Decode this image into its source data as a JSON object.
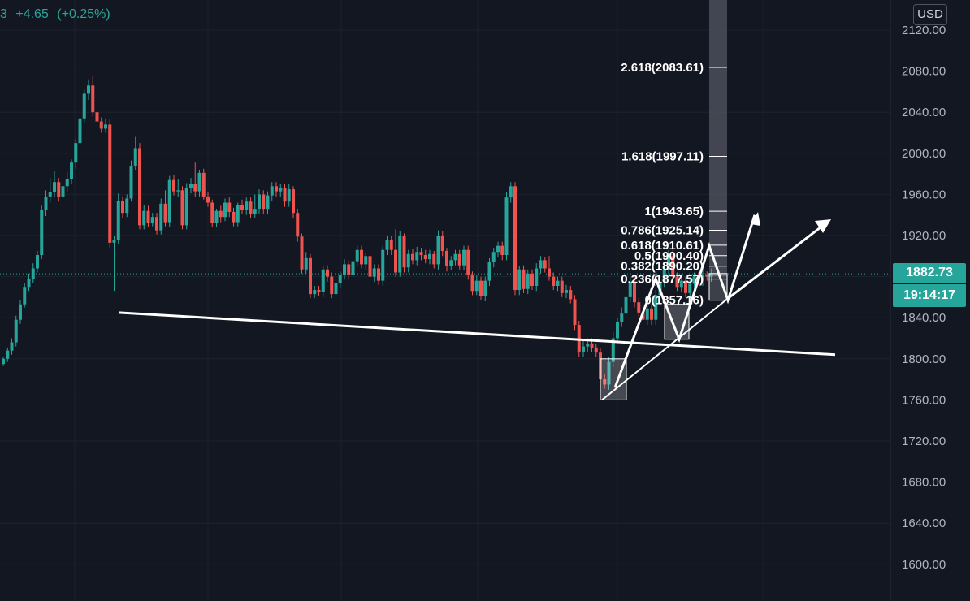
{
  "legend": {
    "symbol_tail": "3",
    "change": "+4.65",
    "change_pct": "(+0.25%)"
  },
  "currency": "USD",
  "last_price": "1882.73",
  "countdown": "19:14:17",
  "colors": {
    "background": "#131722",
    "grid": "#1e222d",
    "bull": "#26a69a",
    "bear": "#ef5350",
    "axis_text": "#b2b5be",
    "drawing": "#ffffff"
  },
  "chart_data": {
    "type": "candlestick",
    "ylim": [
      1560,
      2136
    ],
    "y_ticks": [
      "2120.00",
      "2080.00",
      "2040.00",
      "2000.00",
      "1960.00",
      "1920.00",
      "1880.00",
      "1840.00",
      "1800.00",
      "1760.00",
      "1720.00",
      "1680.00",
      "1640.00",
      "1600.00"
    ],
    "fib_levels": [
      {
        "label": "2.618(2083.61)",
        "value": 2083.61
      },
      {
        "label": "1.618(1997.11)",
        "value": 1997.11
      },
      {
        "label": "1(1943.65)",
        "value": 1943.65
      },
      {
        "label": "0.786(1925.14)",
        "value": 1925.14
      },
      {
        "label": "0.618(1910.61)",
        "value": 1910.61
      },
      {
        "label": "0.5(1900.40)",
        "value": 1900.4
      },
      {
        "label": "0.382(1890.20)",
        "value": 1890.2
      },
      {
        "label": "0.236(1877.57)",
        "value": 1877.57
      },
      {
        "label": "0(1857.16)",
        "value": 1857.16
      }
    ],
    "candles": [
      [
        1795,
        1800,
        1793,
        1802
      ],
      [
        1800,
        1808,
        1797,
        1811
      ],
      [
        1808,
        1816,
        1804,
        1820
      ],
      [
        1816,
        1838,
        1812,
        1842
      ],
      [
        1838,
        1853,
        1834,
        1857
      ],
      [
        1853,
        1870,
        1850,
        1874
      ],
      [
        1870,
        1878,
        1866,
        1883
      ],
      [
        1878,
        1888,
        1874,
        1893
      ],
      [
        1888,
        1901,
        1884,
        1905
      ],
      [
        1901,
        1945,
        1897,
        1949
      ],
      [
        1945,
        1958,
        1939,
        1964
      ],
      [
        1958,
        1962,
        1952,
        1976
      ],
      [
        1962,
        1972,
        1957,
        1983
      ],
      [
        1972,
        1958,
        1953,
        1976
      ],
      [
        1958,
        1968,
        1953,
        1972
      ],
      [
        1968,
        1975,
        1963,
        1982
      ],
      [
        1975,
        1991,
        1970,
        1994
      ],
      [
        1991,
        2010,
        1985,
        2014
      ],
      [
        2010,
        2034,
        2006,
        2039
      ],
      [
        2034,
        2058,
        2030,
        2062
      ],
      [
        2058,
        2066,
        2052,
        2072
      ],
      [
        2066,
        2040,
        2036,
        2075
      ],
      [
        2040,
        2031,
        2027,
        2045
      ],
      [
        2031,
        2024,
        2020,
        2035
      ],
      [
        2024,
        2028,
        2020,
        2034
      ],
      [
        2028,
        1913,
        1908,
        2033
      ],
      [
        1913,
        1916,
        1866,
        1920
      ],
      [
        1916,
        1954,
        1912,
        1961
      ],
      [
        1954,
        1942,
        1937,
        1958
      ],
      [
        1942,
        1956,
        1938,
        1960
      ],
      [
        1956,
        1988,
        1953,
        1993
      ],
      [
        1988,
        2005,
        1984,
        2016
      ],
      [
        2005,
        1930,
        1926,
        2010
      ],
      [
        1930,
        1944,
        1926,
        1950
      ],
      [
        1944,
        1932,
        1928,
        1949
      ],
      [
        1932,
        1938,
        1929,
        1942
      ],
      [
        1938,
        1925,
        1921,
        1942
      ],
      [
        1925,
        1951,
        1921,
        1956
      ],
      [
        1951,
        1933,
        1929,
        1964
      ],
      [
        1933,
        1974,
        1928,
        1978
      ],
      [
        1974,
        1963,
        1959,
        1979
      ],
      [
        1963,
        1964,
        1958,
        1975
      ],
      [
        1964,
        1930,
        1926,
        1968
      ],
      [
        1930,
        1966,
        1926,
        1971
      ],
      [
        1966,
        1970,
        1961,
        1976
      ],
      [
        1970,
        1963,
        1958,
        1991
      ],
      [
        1963,
        1981,
        1958,
        1984
      ],
      [
        1981,
        1958,
        1955,
        1985
      ],
      [
        1958,
        1952,
        1948,
        1962
      ],
      [
        1952,
        1932,
        1928,
        1955
      ],
      [
        1932,
        1944,
        1928,
        1946
      ],
      [
        1944,
        1938,
        1933,
        1949
      ],
      [
        1938,
        1952,
        1934,
        1956
      ],
      [
        1952,
        1943,
        1938,
        1957
      ],
      [
        1943,
        1933,
        1929,
        1947
      ],
      [
        1933,
        1950,
        1929,
        1952
      ],
      [
        1950,
        1945,
        1941,
        1955
      ],
      [
        1945,
        1953,
        1940,
        1957
      ],
      [
        1953,
        1941,
        1937,
        1957
      ],
      [
        1941,
        1946,
        1937,
        1960
      ],
      [
        1946,
        1960,
        1941,
        1965
      ],
      [
        1960,
        1946,
        1941,
        1964
      ],
      [
        1946,
        1959,
        1941,
        1963
      ],
      [
        1959,
        1968,
        1954,
        1972
      ],
      [
        1968,
        1963,
        1958,
        1972
      ],
      [
        1963,
        1966,
        1958,
        1970
      ],
      [
        1966,
        1953,
        1948,
        1970
      ],
      [
        1953,
        1965,
        1948,
        1970
      ],
      [
        1965,
        1942,
        1937,
        1968
      ],
      [
        1942,
        1919,
        1914,
        1946
      ],
      [
        1919,
        1887,
        1883,
        1922
      ],
      [
        1887,
        1898,
        1883,
        1904
      ],
      [
        1898,
        1863,
        1859,
        1902
      ],
      [
        1863,
        1867,
        1859,
        1871
      ],
      [
        1867,
        1865,
        1861,
        1871
      ],
      [
        1865,
        1887,
        1860,
        1890
      ],
      [
        1887,
        1880,
        1875,
        1891
      ],
      [
        1880,
        1863,
        1859,
        1884
      ],
      [
        1863,
        1874,
        1858,
        1880
      ],
      [
        1874,
        1882,
        1869,
        1885
      ],
      [
        1882,
        1892,
        1877,
        1897
      ],
      [
        1892,
        1882,
        1877,
        1896
      ],
      [
        1882,
        1895,
        1877,
        1900
      ],
      [
        1895,
        1906,
        1890,
        1910
      ],
      [
        1906,
        1892,
        1888,
        1910
      ],
      [
        1892,
        1900,
        1887,
        1903
      ],
      [
        1900,
        1880,
        1876,
        1904
      ],
      [
        1880,
        1888,
        1875,
        1892
      ],
      [
        1888,
        1876,
        1872,
        1892
      ],
      [
        1876,
        1906,
        1871,
        1910
      ],
      [
        1906,
        1916,
        1901,
        1920
      ],
      [
        1916,
        1906,
        1901,
        1920
      ],
      [
        1906,
        1884,
        1880,
        1926
      ],
      [
        1884,
        1920,
        1880,
        1924
      ],
      [
        1920,
        1889,
        1884,
        1922
      ],
      [
        1889,
        1902,
        1884,
        1906
      ],
      [
        1902,
        1896,
        1892,
        1907
      ],
      [
        1896,
        1904,
        1891,
        1909
      ],
      [
        1904,
        1901,
        1896,
        1908
      ],
      [
        1901,
        1897,
        1893,
        1906
      ],
      [
        1897,
        1902,
        1892,
        1906
      ],
      [
        1902,
        1892,
        1888,
        1905
      ],
      [
        1892,
        1920,
        1887,
        1925
      ],
      [
        1920,
        1905,
        1900,
        1924
      ],
      [
        1905,
        1890,
        1885,
        1908
      ],
      [
        1890,
        1896,
        1886,
        1900
      ],
      [
        1896,
        1902,
        1891,
        1906
      ],
      [
        1902,
        1891,
        1887,
        1906
      ],
      [
        1891,
        1906,
        1886,
        1910
      ],
      [
        1906,
        1882,
        1877,
        1910
      ],
      [
        1882,
        1866,
        1862,
        1885
      ],
      [
        1866,
        1876,
        1862,
        1882
      ],
      [
        1876,
        1861,
        1857,
        1880
      ],
      [
        1861,
        1876,
        1856,
        1880
      ],
      [
        1876,
        1894,
        1871,
        1898
      ],
      [
        1894,
        1904,
        1889,
        1908
      ],
      [
        1904,
        1910,
        1899,
        1914
      ],
      [
        1910,
        1901,
        1896,
        1914
      ],
      [
        1901,
        1957,
        1896,
        1962
      ],
      [
        1957,
        1968,
        1952,
        1972
      ],
      [
        1968,
        1867,
        1862,
        1972
      ],
      [
        1867,
        1887,
        1862,
        1890
      ],
      [
        1887,
        1868,
        1864,
        1891
      ],
      [
        1868,
        1883,
        1863,
        1887
      ],
      [
        1883,
        1871,
        1867,
        1887
      ],
      [
        1871,
        1888,
        1866,
        1893
      ],
      [
        1888,
        1896,
        1883,
        1900
      ],
      [
        1896,
        1888,
        1884,
        1899
      ],
      [
        1888,
        1880,
        1876,
        1900
      ],
      [
        1880,
        1871,
        1867,
        1884
      ],
      [
        1871,
        1876,
        1866,
        1880
      ],
      [
        1876,
        1864,
        1860,
        1880
      ],
      [
        1864,
        1867,
        1859,
        1872
      ],
      [
        1867,
        1858,
        1854,
        1871
      ],
      [
        1858,
        1833,
        1828,
        1862
      ],
      [
        1833,
        1807,
        1802,
        1837
      ],
      [
        1807,
        1812,
        1802,
        1818
      ],
      [
        1812,
        1815,
        1807,
        1820
      ],
      [
        1815,
        1811,
        1807,
        1820
      ],
      [
        1811,
        1806,
        1802,
        1815
      ],
      [
        1806,
        1780,
        1776,
        1810
      ],
      [
        1780,
        1775,
        1771,
        1785
      ],
      [
        1775,
        1797,
        1770,
        1802
      ],
      [
        1797,
        1820,
        1792,
        1826
      ],
      [
        1820,
        1836,
        1815,
        1840
      ],
      [
        1836,
        1844,
        1831,
        1850
      ],
      [
        1844,
        1860,
        1839,
        1870
      ],
      [
        1860,
        1875,
        1855,
        1880
      ],
      [
        1875,
        1855,
        1850,
        1880
      ],
      [
        1855,
        1845,
        1841,
        1859
      ],
      [
        1845,
        1838,
        1834,
        1849
      ],
      [
        1838,
        1849,
        1833,
        1853
      ],
      [
        1849,
        1838,
        1833,
        1853
      ],
      [
        1838,
        1862,
        1833,
        1867
      ],
      [
        1862,
        1875,
        1857,
        1880
      ],
      [
        1875,
        1886,
        1870,
        1890
      ],
      [
        1886,
        1900,
        1880,
        1906
      ],
      [
        1900,
        1880,
        1876,
        1906
      ],
      [
        1880,
        1870,
        1866,
        1884
      ],
      [
        1870,
        1876,
        1865,
        1880
      ],
      [
        1876,
        1864,
        1860,
        1880
      ],
      [
        1864,
        1873,
        1859,
        1878
      ],
      [
        1873,
        1880,
        1868,
        1884
      ],
      [
        1880,
        1876,
        1872,
        1884
      ],
      [
        1876,
        1882,
        1871,
        1886
      ],
      [
        1882,
        1880,
        1876,
        1885
      ],
      [
        1880,
        1883,
        1875,
        1888
      ]
    ]
  }
}
